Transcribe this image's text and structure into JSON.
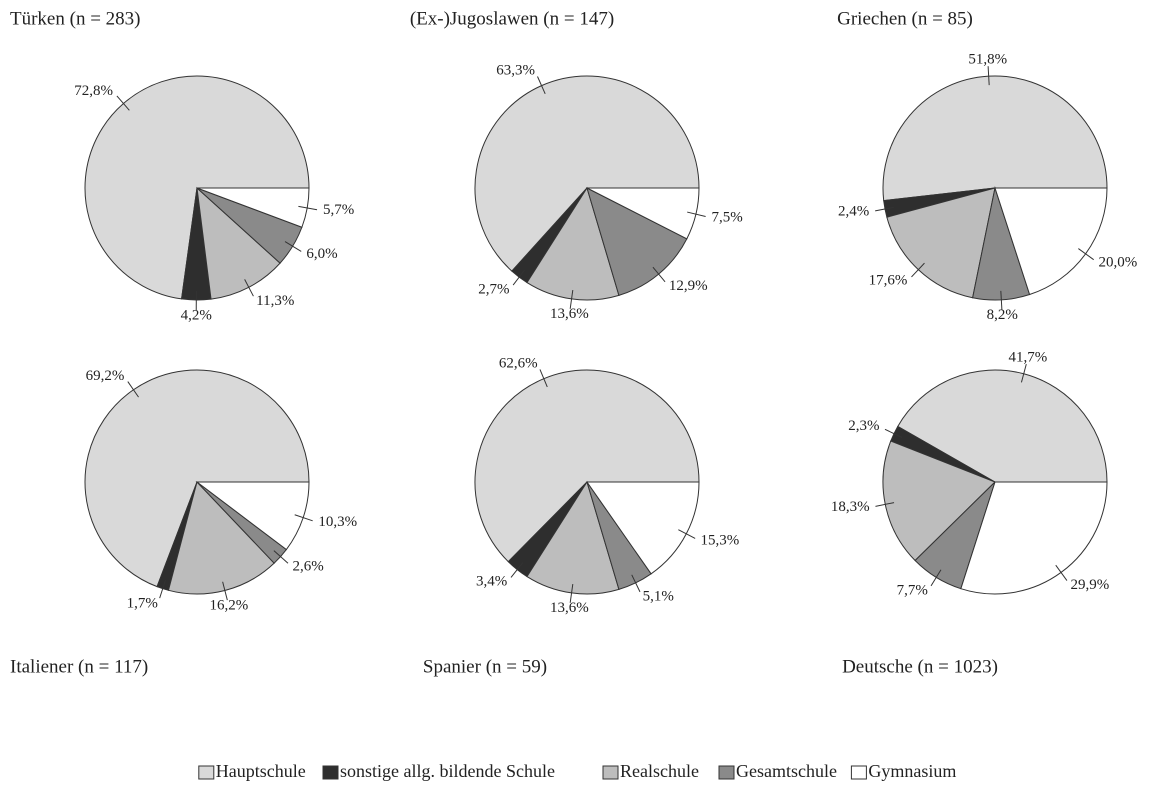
{
  "chart_data": [
    {
      "type": "pie",
      "title": "Türken (n = 283)",
      "values": [
        72.8,
        4.2,
        11.3,
        6.0,
        5.7
      ],
      "value_labels": [
        "72,8%",
        "4,2%",
        "11,3%",
        "6,0%",
        "5,7%"
      ]
    },
    {
      "type": "pie",
      "title": "(Ex-)Jugoslawen (n = 147)",
      "values": [
        63.3,
        2.7,
        13.6,
        12.9,
        7.5
      ],
      "value_labels": [
        "63,3%",
        "2,7%",
        "13,6%",
        "12,9%",
        "7,5%"
      ]
    },
    {
      "type": "pie",
      "title": "Griechen (n = 85)",
      "values": [
        51.8,
        2.4,
        17.6,
        8.2,
        20.0
      ],
      "value_labels": [
        "51,8%",
        "2,4%",
        "17,6%",
        "8,2%",
        "20,0%"
      ]
    },
    {
      "type": "pie",
      "title": "Italiener (n = 117)",
      "values": [
        69.2,
        1.7,
        16.2,
        2.6,
        10.3
      ],
      "value_labels": [
        "69,2%",
        "1,7%",
        "16,2%",
        "2,6%",
        "10,3%"
      ]
    },
    {
      "type": "pie",
      "title": "Spanier (n = 59)",
      "values": [
        62.6,
        3.4,
        13.6,
        5.1,
        15.3
      ],
      "value_labels": [
        "62,6%",
        "3,4%",
        "13,6%",
        "5,1%",
        "15,3%"
      ]
    },
    {
      "type": "pie",
      "title": "Deutsche (n = 1023)",
      "values": [
        41.7,
        2.3,
        18.3,
        7.7,
        29.9
      ],
      "value_labels": [
        "41,7%",
        "2,3%",
        "18,3%",
        "7,7%",
        "29,9%"
      ]
    }
  ],
  "legend": {
    "categories": [
      "Hauptschule",
      "sonstige allg. bildende Schule",
      "Realschule",
      "Gesamtschule",
      "Gymnasium"
    ],
    "colors": [
      "#d9d9d9",
      "#2e2e2e",
      "#bdbdbd",
      "#8a8a8a",
      "#ffffff"
    ]
  }
}
